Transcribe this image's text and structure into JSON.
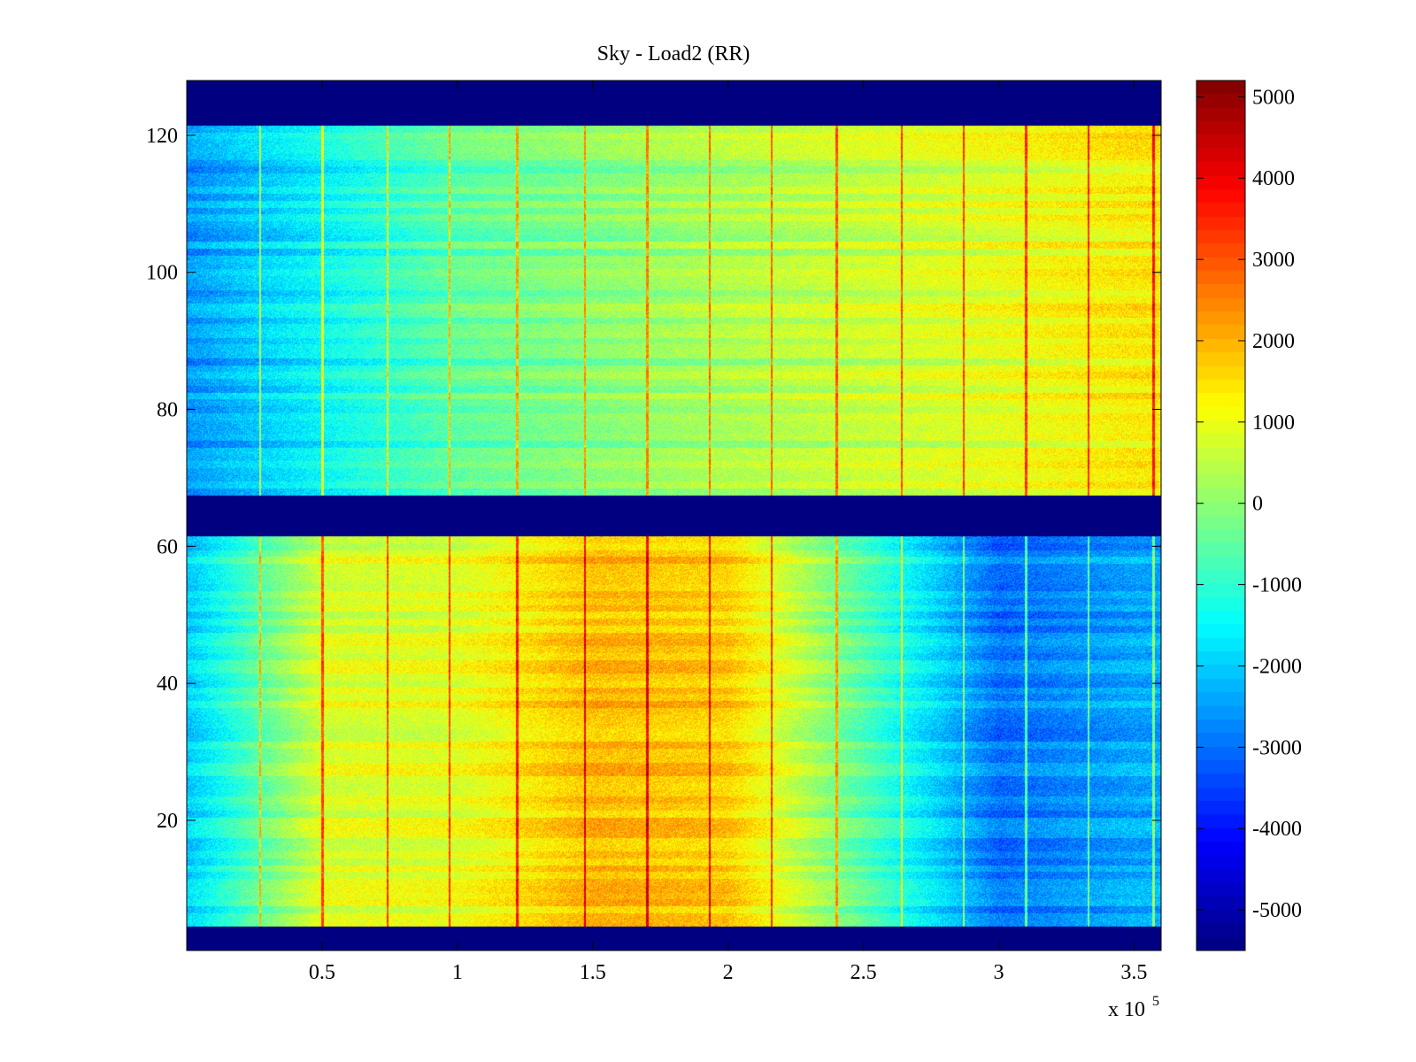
{
  "chart_data": {
    "type": "heatmap",
    "title": "Sky - Load2 (RR)",
    "xlabel": "",
    "ylabel": "",
    "x_exponent_label": "x 10",
    "x_exponent_power": "5",
    "xlim": [
      0,
      3.6
    ],
    "ylim": [
      1,
      128
    ],
    "x_ticks": [
      0.5,
      1,
      1.5,
      2,
      2.5,
      3,
      3.5
    ],
    "x_tick_labels": [
      "0.5",
      "1",
      "1.5",
      "2",
      "2.5",
      "3",
      "3.5"
    ],
    "y_ticks": [
      20,
      40,
      60,
      80,
      100,
      120
    ],
    "y_tick_labels": [
      "20",
      "40",
      "60",
      "80",
      "100",
      "120"
    ],
    "colormap": "jet",
    "clim": [
      -5500,
      5200
    ],
    "colorbar_ticks": [
      5000,
      4000,
      3000,
      2000,
      1000,
      0,
      -1000,
      -2000,
      -3000,
      -4000,
      -5000
    ],
    "colorbar_tick_labels": [
      "5000",
      "4000",
      "3000",
      "2000",
      "1000",
      "0",
      "-1000",
      "-2000",
      "-3000",
      "-4000",
      "-5000"
    ],
    "masked_rows": [
      [
        1,
        4
      ],
      [
        62,
        67
      ],
      [
        122,
        128
      ]
    ],
    "masked_value": -5500,
    "vertical_stripe_x": [
      0.27,
      0.5,
      0.74,
      0.97,
      1.22,
      1.47,
      1.7,
      1.93,
      2.16,
      2.4,
      2.64,
      2.87,
      3.1,
      3.33,
      3.57
    ],
    "value_summary": {
      "upper_band_rows_68_121": {
        "x": [
          0.0,
          0.5,
          1.0,
          1.5,
          2.0,
          2.5,
          3.0,
          3.5
        ],
        "values": [
          -2600,
          -1500,
          -500,
          -100,
          300,
          600,
          900,
          1300
        ]
      },
      "lower_band_rows_5_61": {
        "x": [
          0.0,
          0.5,
          1.0,
          1.5,
          2.0,
          2.5,
          3.0,
          3.5
        ],
        "values": [
          -2000,
          800,
          900,
          1900,
          1700,
          -600,
          -3000,
          -2400
        ]
      }
    }
  }
}
